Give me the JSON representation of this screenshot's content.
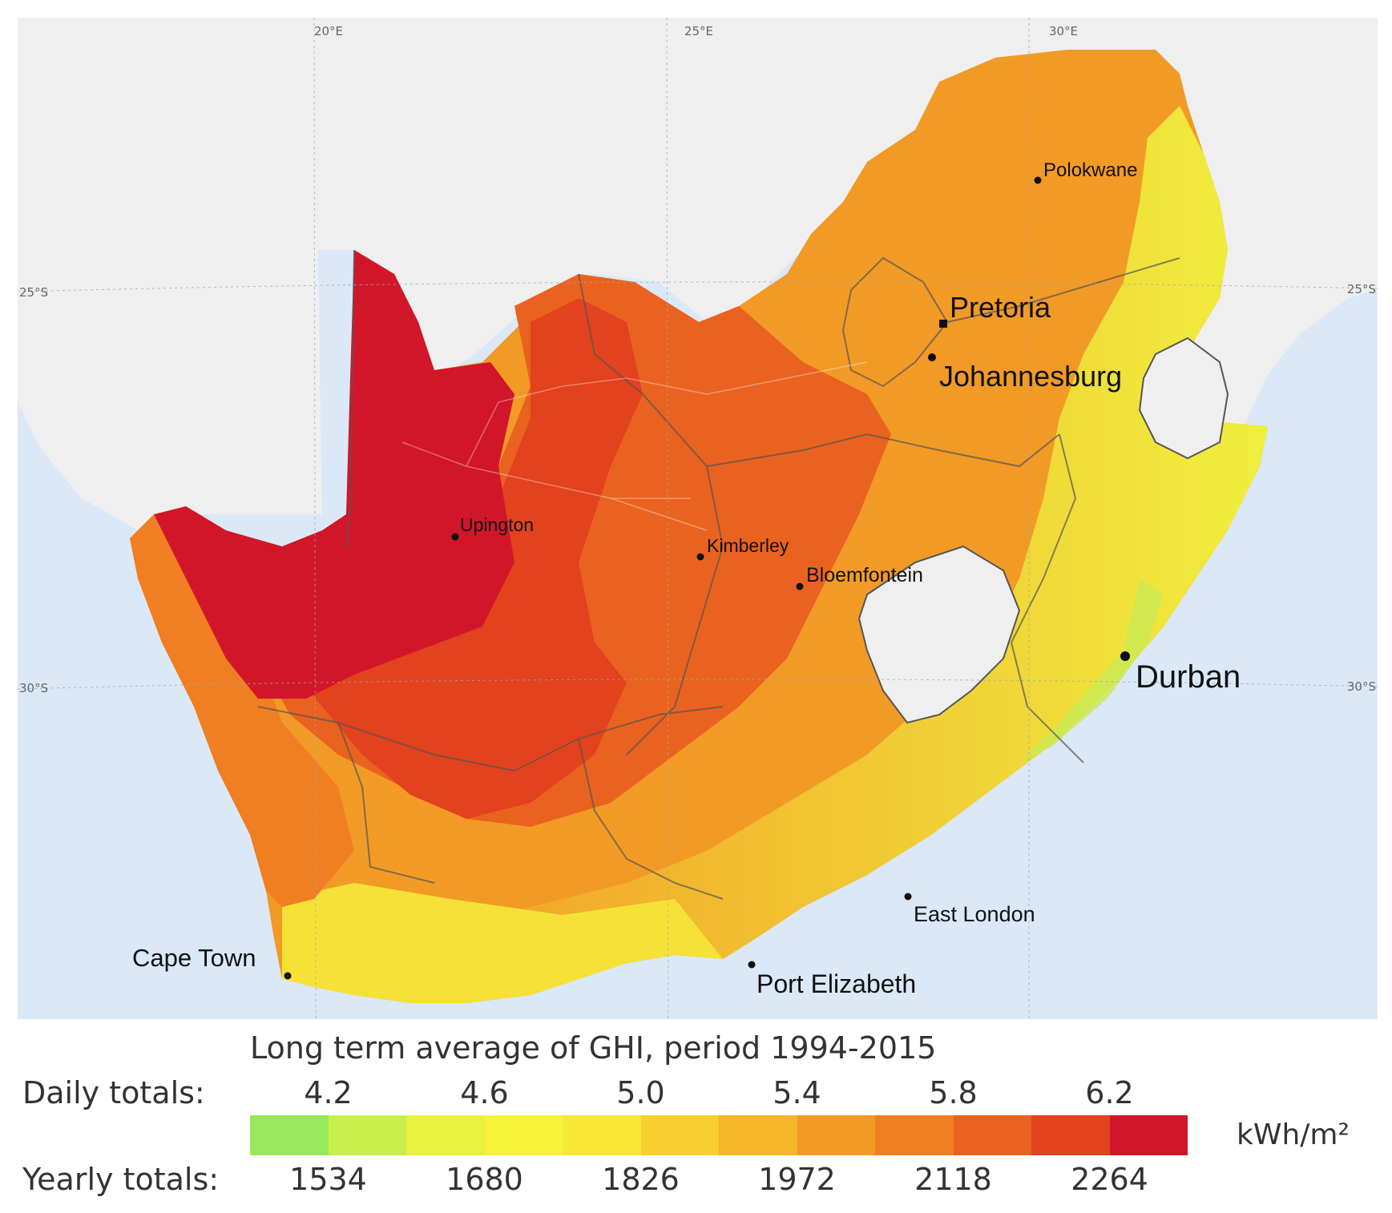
{
  "coordinates": {
    "lon_20": "20°E",
    "lon_25": "25°E",
    "lon_30": "30°E",
    "lat_25_left": "25°S",
    "lat_25_right": "25°S",
    "lat_30_left": "30°S",
    "lat_30_right": "30°S"
  },
  "cities": {
    "polokwane": "Polokwane",
    "pretoria": "Pretoria",
    "johannesburg": "Johannesburg",
    "upington": "Upington",
    "kimberley": "Kimberley",
    "bloemfontein": "Bloemfontein",
    "durban": "Durban",
    "east_london": "East London",
    "cape_town": "Cape Town",
    "port_elizabeth": "Port Elizabeth"
  },
  "legend": {
    "title": "Long term average of GHI, period 1994-2015",
    "daily_label": "Daily totals:",
    "yearly_label": "Yearly totals:",
    "daily_ticks": [
      "4.2",
      "4.6",
      "5.0",
      "5.4",
      "5.8",
      "6.2"
    ],
    "yearly_ticks": [
      "1534",
      "1680",
      "1826",
      "1972",
      "2118",
      "2264"
    ],
    "unit": "kWh/m²",
    "colors": [
      "#97e85a",
      "#c8ef4c",
      "#e9f23f",
      "#f7f23a",
      "#f7e835",
      "#f7cf2e",
      "#f5b62a",
      "#f29a26",
      "#ef7f22",
      "#ea621f",
      "#e2421d",
      "#d2162a"
    ]
  },
  "colors": {
    "ocean": "#dbe8f8",
    "land_neighbor": "#efefef",
    "border": "#555555"
  }
}
